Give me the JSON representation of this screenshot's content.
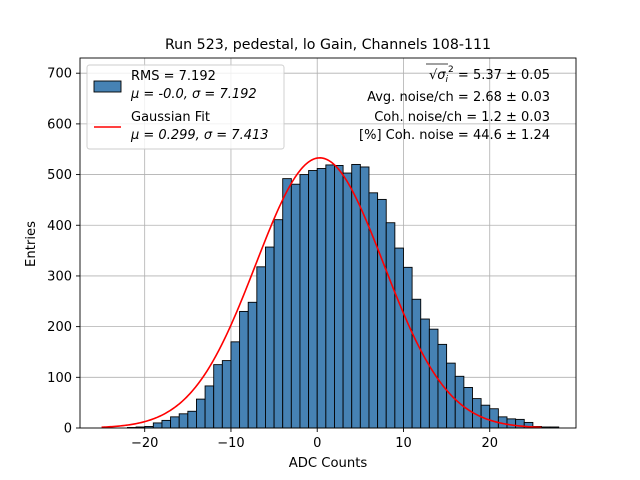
{
  "chart_data": {
    "type": "bar",
    "title": "Run 523, pedestal, lo Gain, Channels 108-111",
    "xlabel": "ADC Counts",
    "ylabel": "Entries",
    "xlim": [
      -27.5,
      30.0
    ],
    "ylim": [
      0,
      730
    ],
    "xticks": [
      -20,
      -10,
      0,
      10,
      20
    ],
    "xtick_labels": [
      "−20",
      "−10",
      "0",
      "10",
      "20"
    ],
    "yticks": [
      0,
      100,
      200,
      300,
      400,
      500,
      600,
      700
    ],
    "ytick_labels": [
      "0",
      "100",
      "200",
      "300",
      "400",
      "500",
      "600",
      "700"
    ],
    "grid": true,
    "legend_position": "top-left",
    "bin_width": 1,
    "bin_edges_start": -22,
    "values": [
      1,
      2,
      3,
      10,
      15,
      22,
      28,
      33,
      57,
      83,
      125,
      133,
      170,
      230,
      248,
      318,
      357,
      411,
      492,
      481,
      500,
      508,
      512,
      519,
      518,
      503,
      520,
      515,
      464,
      451,
      405,
      355,
      317,
      254,
      215,
      195,
      165,
      128,
      102,
      80,
      58,
      45,
      38,
      22,
      18,
      17,
      11,
      3,
      2,
      2
    ],
    "series": [
      {
        "name": "RMS = 7.192",
        "name_line2": "μ = -0.0, σ = 7.192",
        "kind": "histogram",
        "color": "#4682b4",
        "edgecolor": "#000000"
      },
      {
        "name": "Gaussian Fit",
        "name_line2": "μ = 0.299, σ = 7.413",
        "kind": "line",
        "color": "#ff0000",
        "mu": 0.299,
        "sigma": 7.413,
        "amplitude": 533,
        "x_range": [
          -25,
          26
        ]
      }
    ],
    "annotations": [
      {
        "lead": "√",
        "text": "σ",
        "sub": "i",
        "sup": "2",
        "tail": " = 5.37 ± 0.05"
      },
      {
        "text": "Avg. noise/ch = 2.68 ± 0.03"
      },
      {
        "text": "Coh. noise/ch = 1.2 ± 0.03"
      },
      {
        "text": "[%] Coh. noise = 44.6 ± 1.24"
      }
    ]
  },
  "style": {
    "bar_color": "#4682b4",
    "fit_color": "#ff0000",
    "grid_color": "#b0b0b0"
  }
}
